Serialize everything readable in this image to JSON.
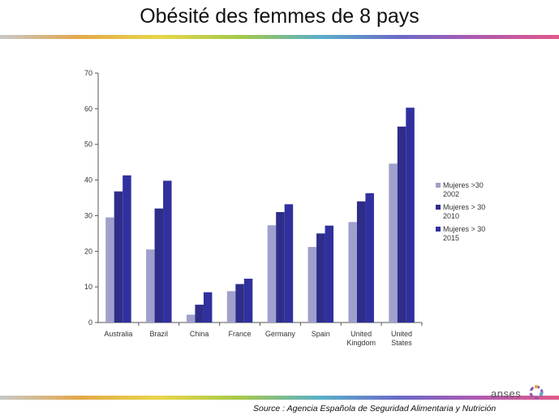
{
  "slide": {
    "title": "Obésité des femmes de 8 pays",
    "source": "Source : Agencia Española de Seguridad Alimentaria y Nutrición",
    "logo_text": "anses"
  },
  "chart_data": {
    "type": "bar",
    "categories": [
      [
        "Australia"
      ],
      [
        "Brazil"
      ],
      [
        "China"
      ],
      [
        "France"
      ],
      [
        "Germany"
      ],
      [
        "Spain"
      ],
      [
        "United",
        "Kingdom"
      ],
      [
        "United",
        "States"
      ]
    ],
    "series": [
      {
        "name": "Mujeres >30 2002",
        "legend_lines": [
          "Mujeres >30",
          "2002"
        ],
        "values": [
          29.5,
          20.5,
          2.2,
          8.8,
          27.3,
          21.2,
          28.2,
          44.6
        ],
        "color": "#a0a0cc"
      },
      {
        "name": "Mujeres > 30 2010",
        "legend_lines": [
          "Mujeres > 30",
          "2010"
        ],
        "values": [
          36.8,
          32.0,
          5.0,
          10.8,
          31.0,
          25.0,
          34.0,
          55.0
        ],
        "color": "#2e2e8a"
      },
      {
        "name": "Mujeres > 30 2015",
        "legend_lines": [
          "Mujeres > 30",
          "2015"
        ],
        "values": [
          41.3,
          39.8,
          8.5,
          12.3,
          33.2,
          27.2,
          36.3,
          60.3
        ],
        "color": "#30309e"
      }
    ],
    "ylim": [
      0,
      70
    ],
    "yticks": [
      0,
      10,
      20,
      30,
      40,
      50,
      60,
      70
    ],
    "grid": false,
    "legend_position": "right"
  },
  "colors": {
    "deco_line": [
      "#c8c8c8",
      "#e3a84a",
      "#e8d64a",
      "#a6c84a",
      "#5ab0c8",
      "#6a6ac8",
      "#b05ab0",
      "#e05a8a"
    ]
  }
}
